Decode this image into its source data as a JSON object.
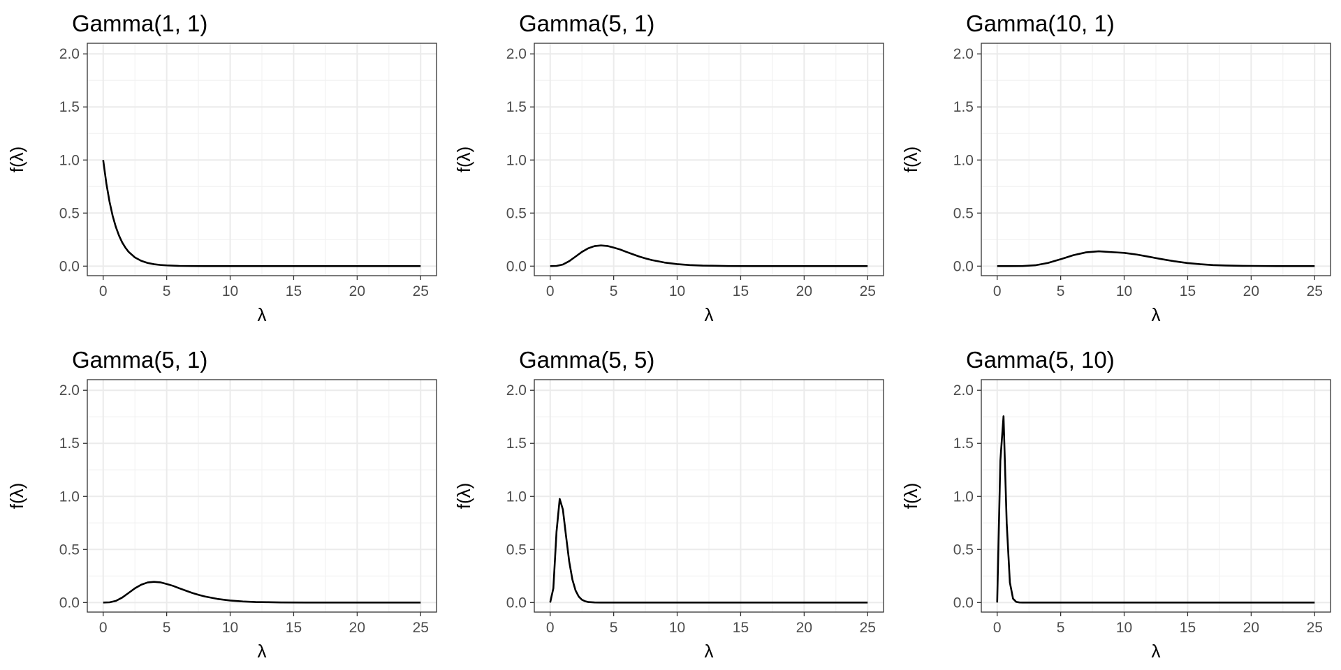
{
  "chart_data": [
    {
      "type": "line",
      "title": "Gamma(1, 1)",
      "xlabel": "λ",
      "ylabel": "f(λ)",
      "xlim": [
        -1.25,
        26.25
      ],
      "ylim": [
        -0.09,
        2.1
      ],
      "x_ticks": [
        0,
        5,
        10,
        15,
        20,
        25
      ],
      "y_ticks": [
        0.0,
        0.5,
        1.0,
        1.5,
        2.0
      ],
      "x_tick_labels": [
        "0",
        "5",
        "10",
        "15",
        "20",
        "25"
      ],
      "y_tick_labels": [
        "0.0",
        "0.5",
        "1.0",
        "1.5",
        "2.0"
      ],
      "grid": true,
      "series": [
        {
          "color": "#000000",
          "shape": 1,
          "rate": 1,
          "x": [
            0,
            0.25,
            0.5,
            0.75,
            1,
            1.25,
            1.5,
            1.75,
            2,
            2.5,
            3,
            3.5,
            4,
            4.5,
            5,
            6,
            7,
            8,
            10,
            12,
            15,
            20,
            25
          ],
          "y": [
            1.0,
            0.779,
            0.607,
            0.472,
            0.368,
            0.287,
            0.223,
            0.174,
            0.135,
            0.082,
            0.05,
            0.03,
            0.018,
            0.011,
            0.007,
            0.002,
            0.001,
            0.0,
            0.0,
            0.0,
            0.0,
            0.0,
            0.0
          ]
        }
      ]
    },
    {
      "type": "line",
      "title": "Gamma(5, 1)",
      "xlabel": "λ",
      "ylabel": "f(λ)",
      "xlim": [
        -1.25,
        26.25
      ],
      "ylim": [
        -0.09,
        2.1
      ],
      "x_ticks": [
        0,
        5,
        10,
        15,
        20,
        25
      ],
      "y_ticks": [
        0.0,
        0.5,
        1.0,
        1.5,
        2.0
      ],
      "x_tick_labels": [
        "0",
        "5",
        "10",
        "15",
        "20",
        "25"
      ],
      "y_tick_labels": [
        "0.0",
        "0.5",
        "1.0",
        "1.5",
        "2.0"
      ],
      "grid": true,
      "series": [
        {
          "color": "#000000",
          "shape": 5,
          "rate": 1,
          "x": [
            0,
            0.5,
            1,
            1.5,
            2,
            2.5,
            3,
            3.5,
            4,
            4.5,
            5,
            5.5,
            6,
            6.5,
            7,
            7.5,
            8,
            9,
            10,
            11,
            12,
            13,
            14,
            16,
            18,
            20,
            25
          ],
          "y": [
            0.0,
            0.002,
            0.015,
            0.047,
            0.09,
            0.134,
            0.168,
            0.189,
            0.195,
            0.19,
            0.175,
            0.157,
            0.134,
            0.112,
            0.091,
            0.073,
            0.057,
            0.034,
            0.019,
            0.01,
            0.005,
            0.003,
            0.001,
            0.0,
            0.0,
            0.0,
            0.0
          ]
        }
      ]
    },
    {
      "type": "line",
      "title": "Gamma(10, 1)",
      "xlabel": "λ",
      "ylabel": "f(λ)",
      "xlim": [
        -1.25,
        26.25
      ],
      "ylim": [
        -0.09,
        2.1
      ],
      "x_ticks": [
        0,
        5,
        10,
        15,
        20,
        25
      ],
      "y_ticks": [
        0.0,
        0.5,
        1.0,
        1.5,
        2.0
      ],
      "x_tick_labels": [
        "0",
        "5",
        "10",
        "15",
        "20",
        "25"
      ],
      "y_tick_labels": [
        "0.0",
        "0.5",
        "1.0",
        "1.5",
        "2.0"
      ],
      "grid": true,
      "series": [
        {
          "color": "#000000",
          "shape": 10,
          "rate": 1,
          "x": [
            0,
            1,
            2,
            3,
            4,
            5,
            6,
            7,
            8,
            9,
            10,
            11,
            12,
            13,
            14,
            15,
            16,
            17,
            18,
            19,
            20,
            22,
            25
          ],
          "y": [
            0.0,
            0.0,
            0.001,
            0.008,
            0.03,
            0.065,
            0.103,
            0.13,
            0.14,
            0.132,
            0.125,
            0.109,
            0.087,
            0.065,
            0.045,
            0.029,
            0.018,
            0.01,
            0.006,
            0.003,
            0.002,
            0.0,
            0.0
          ]
        }
      ]
    },
    {
      "type": "line",
      "title": "Gamma(5, 1)",
      "xlabel": "λ",
      "ylabel": "f(λ)",
      "xlim": [
        -1.25,
        26.25
      ],
      "ylim": [
        -0.09,
        2.1
      ],
      "x_ticks": [
        0,
        5,
        10,
        15,
        20,
        25
      ],
      "y_ticks": [
        0.0,
        0.5,
        1.0,
        1.5,
        2.0
      ],
      "x_tick_labels": [
        "0",
        "5",
        "10",
        "15",
        "20",
        "25"
      ],
      "y_tick_labels": [
        "0.0",
        "0.5",
        "1.0",
        "1.5",
        "2.0"
      ],
      "grid": true,
      "series": [
        {
          "color": "#000000",
          "shape": 5,
          "rate": 1,
          "x": [
            0,
            0.5,
            1,
            1.5,
            2,
            2.5,
            3,
            3.5,
            4,
            4.5,
            5,
            5.5,
            6,
            6.5,
            7,
            7.5,
            8,
            9,
            10,
            11,
            12,
            13,
            14,
            16,
            18,
            20,
            25
          ],
          "y": [
            0.0,
            0.002,
            0.015,
            0.047,
            0.09,
            0.134,
            0.168,
            0.189,
            0.195,
            0.19,
            0.175,
            0.157,
            0.134,
            0.112,
            0.091,
            0.073,
            0.057,
            0.034,
            0.019,
            0.01,
            0.005,
            0.003,
            0.001,
            0.0,
            0.0,
            0.0,
            0.0
          ]
        }
      ]
    },
    {
      "type": "line",
      "title": "Gamma(5, 5)",
      "xlabel": "λ",
      "ylabel": "f(λ)",
      "xlim": [
        -1.25,
        26.25
      ],
      "ylim": [
        -0.09,
        2.1
      ],
      "x_ticks": [
        0,
        5,
        10,
        15,
        20,
        25
      ],
      "y_ticks": [
        0.0,
        0.5,
        1.0,
        1.5,
        2.0
      ],
      "x_tick_labels": [
        "0",
        "5",
        "10",
        "15",
        "20",
        "25"
      ],
      "y_tick_labels": [
        "0.0",
        "0.5",
        "1.0",
        "1.5",
        "2.0"
      ],
      "grid": true,
      "series": [
        {
          "color": "#000000",
          "shape": 5,
          "rate": 5,
          "x": [
            0,
            0.25,
            0.5,
            0.75,
            1.0,
            1.25,
            1.5,
            1.75,
            2.0,
            2.25,
            2.5,
            2.75,
            3.0,
            3.5,
            4.0,
            5.0,
            10,
            15,
            20,
            25
          ],
          "y": [
            0.0,
            0.134,
            0.668,
            0.976,
            0.877,
            0.625,
            0.385,
            0.216,
            0.113,
            0.056,
            0.026,
            0.012,
            0.005,
            0.001,
            0.0,
            0.0,
            0.0,
            0.0,
            0.0,
            0.0
          ]
        }
      ]
    },
    {
      "type": "line",
      "title": "Gamma(5, 10)",
      "xlabel": "λ",
      "ylabel": "f(λ)",
      "xlim": [
        -1.25,
        26.25
      ],
      "ylim": [
        -0.09,
        2.1
      ],
      "x_ticks": [
        0,
        5,
        10,
        15,
        20,
        25
      ],
      "y_ticks": [
        0.0,
        0.5,
        1.0,
        1.5,
        2.0
      ],
      "x_tick_labels": [
        "0",
        "5",
        "10",
        "15",
        "20",
        "25"
      ],
      "y_tick_labels": [
        "0.0",
        "0.5",
        "1.0",
        "1.5",
        "2.0"
      ],
      "grid": true,
      "series": [
        {
          "color": "#000000",
          "shape": 5,
          "rate": 10,
          "x": [
            0,
            0.25,
            0.5,
            0.75,
            1.0,
            1.25,
            1.5,
            1.75,
            2.0,
            2.5,
            3.0,
            5.0,
            10,
            15,
            20,
            25
          ],
          "y": [
            0.0,
            1.336,
            1.755,
            0.748,
            0.189,
            0.036,
            0.006,
            0.001,
            0.0,
            0.0,
            0.0,
            0.0,
            0.0,
            0.0,
            0.0,
            0.0
          ]
        }
      ]
    }
  ],
  "colors": {
    "background": "#ffffff",
    "panel_border": "#333333",
    "grid_major": "#ebebeb",
    "grid_minor": "#f2f2f2",
    "tick_text": "#4d4d4d",
    "line": "#000000"
  }
}
